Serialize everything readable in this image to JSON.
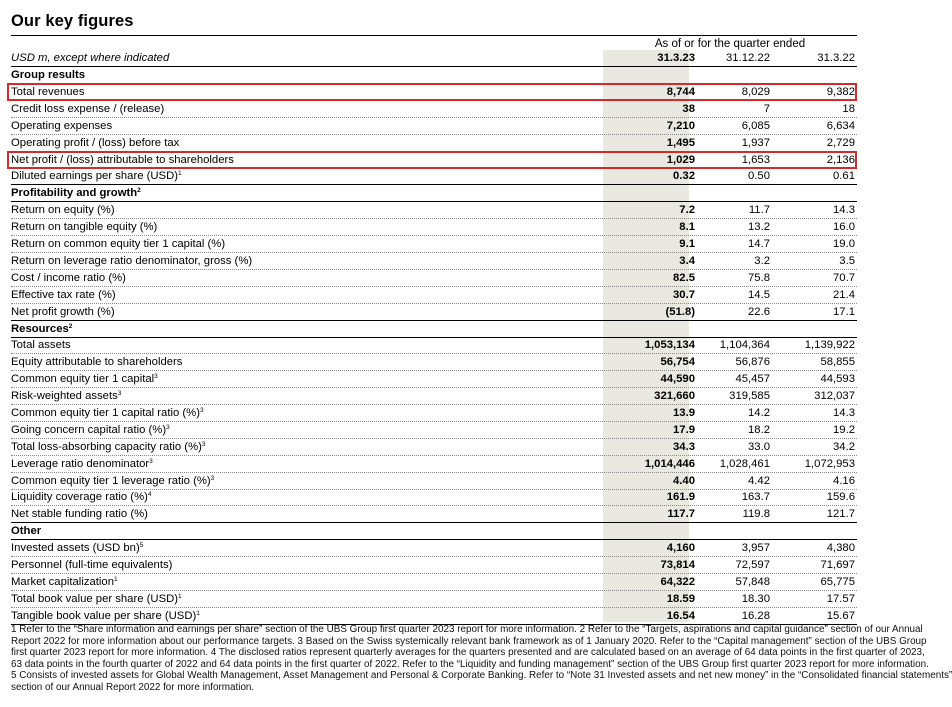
{
  "title": "Our key figures",
  "period_header": "As of or for the quarter ended",
  "unit_label": "USD m, except where indicated",
  "columns": [
    "31.3.23",
    "31.12.22",
    "31.3.22"
  ],
  "highlight_color": "#d62a2a",
  "rows": [
    {
      "type": "section",
      "label": "Group results"
    },
    {
      "type": "data",
      "label": "Total revenues",
      "values": [
        "8,744",
        "8,029",
        "9,382"
      ],
      "highlighted": true
    },
    {
      "type": "data",
      "label": "Credit loss expense / (release)",
      "values": [
        "38",
        "7",
        "18"
      ]
    },
    {
      "type": "data",
      "label": "Operating expenses",
      "values": [
        "7,210",
        "6,085",
        "6,634"
      ]
    },
    {
      "type": "data",
      "label": "Operating profit / (loss) before tax",
      "values": [
        "1,495",
        "1,937",
        "2,729"
      ]
    },
    {
      "type": "data",
      "label": "Net profit / (loss) attributable to shareholders",
      "values": [
        "1,029",
        "1,653",
        "2,136"
      ],
      "highlighted": true
    },
    {
      "type": "data",
      "label": "Diluted earnings per share (USD)",
      "sup": "1",
      "values": [
        "0.32",
        "0.50",
        "0.61"
      ],
      "last": true
    },
    {
      "type": "section",
      "label": "Profitability and growth",
      "sup": "2"
    },
    {
      "type": "data",
      "label": "Return on equity (%)",
      "values": [
        "7.2",
        "11.7",
        "14.3"
      ]
    },
    {
      "type": "data",
      "label": "Return on tangible equity (%)",
      "values": [
        "8.1",
        "13.2",
        "16.0"
      ]
    },
    {
      "type": "data",
      "label": "Return on common equity tier 1 capital (%)",
      "values": [
        "9.1",
        "14.7",
        "19.0"
      ]
    },
    {
      "type": "data",
      "label": "Return on leverage ratio denominator, gross (%)",
      "values": [
        "3.4",
        "3.2",
        "3.5"
      ]
    },
    {
      "type": "data",
      "label": "Cost / income ratio (%)",
      "values": [
        "82.5",
        "75.8",
        "70.7"
      ]
    },
    {
      "type": "data",
      "label": "Effective tax rate (%)",
      "values": [
        "30.7",
        "14.5",
        "21.4"
      ]
    },
    {
      "type": "data",
      "label": "Net profit growth (%)",
      "values": [
        "(51.8)",
        "22.6",
        "17.1"
      ],
      "last": true
    },
    {
      "type": "section",
      "label": "Resources",
      "sup": "2"
    },
    {
      "type": "data",
      "label": "Total assets",
      "values": [
        "1,053,134",
        "1,104,364",
        "1,139,922"
      ]
    },
    {
      "type": "data",
      "label": "Equity attributable to shareholders",
      "values": [
        "56,754",
        "56,876",
        "58,855"
      ]
    },
    {
      "type": "data",
      "label": "Common equity tier 1 capital",
      "sup": "3",
      "values": [
        "44,590",
        "45,457",
        "44,593"
      ]
    },
    {
      "type": "data",
      "label": "Risk-weighted assets",
      "sup": "3",
      "values": [
        "321,660",
        "319,585",
        "312,037"
      ]
    },
    {
      "type": "data",
      "label": "Common equity tier 1 capital ratio (%)",
      "sup": "3",
      "values": [
        "13.9",
        "14.2",
        "14.3"
      ]
    },
    {
      "type": "data",
      "label": "Going concern capital ratio (%)",
      "sup": "3",
      "values": [
        "17.9",
        "18.2",
        "19.2"
      ]
    },
    {
      "type": "data",
      "label": "Total loss-absorbing capacity ratio (%)",
      "sup": "3",
      "values": [
        "34.3",
        "33.0",
        "34.2"
      ]
    },
    {
      "type": "data",
      "label": "Leverage ratio denominator",
      "sup": "3",
      "values": [
        "1,014,446",
        "1,028,461",
        "1,072,953"
      ]
    },
    {
      "type": "data",
      "label": "Common equity tier 1 leverage ratio (%)",
      "sup": "3",
      "values": [
        "4.40",
        "4.42",
        "4.16"
      ]
    },
    {
      "type": "data",
      "label": "Liquidity coverage ratio (%)",
      "sup": "4",
      "values": [
        "161.9",
        "163.7",
        "159.6"
      ]
    },
    {
      "type": "data",
      "label": "Net stable funding ratio (%)",
      "values": [
        "117.7",
        "119.8",
        "121.7"
      ],
      "last": true
    },
    {
      "type": "section",
      "label": "Other"
    },
    {
      "type": "data",
      "label": "Invested assets (USD bn)",
      "sup": "5",
      "values": [
        "4,160",
        "3,957",
        "4,380"
      ]
    },
    {
      "type": "data",
      "label": "Personnel (full-time equivalents)",
      "values": [
        "73,814",
        "72,597",
        "71,697"
      ]
    },
    {
      "type": "data",
      "label": "Market capitalization",
      "sup": "1",
      "values": [
        "64,322",
        "57,848",
        "65,775"
      ]
    },
    {
      "type": "data",
      "label": "Total book value per share (USD)",
      "sup": "1",
      "values": [
        "18.59",
        "18.30",
        "17.57"
      ]
    },
    {
      "type": "data",
      "label": "Tangible book value per share (USD)",
      "sup": "1",
      "values": [
        "16.54",
        "16.28",
        "15.67"
      ],
      "last": true
    }
  ],
  "footnotes": [
    "1 Refer to the “Share information and earnings per share” section of the UBS Group first quarter 2023 report for more information.   2 Refer to the “Targets, aspirations and capital guidance” section of our Annual",
    "Report 2022 for more information about our performance targets.   3 Based on the Swiss systemically relevant bank framework as of 1 January 2020. Refer to the “Capital management” section of the UBS Group",
    "first quarter 2023 report for more information.   4 The disclosed ratios represent quarterly averages for the quarters presented and are calculated based on an average of 64 data points in the first quarter of 2023,",
    "63 data points in the fourth quarter of 2022 and 64 data points in the first quarter of 2022. Refer to the “Liquidity and funding management” section of the UBS Group first quarter 2023 report for more information.",
    "5 Consists of invested assets for Global Wealth Management, Asset Management and Personal & Corporate Banking. Refer to “Note 31 Invested assets and net new money” in the “Consolidated financial statements”",
    "section of our Annual Report 2022 for more information."
  ]
}
